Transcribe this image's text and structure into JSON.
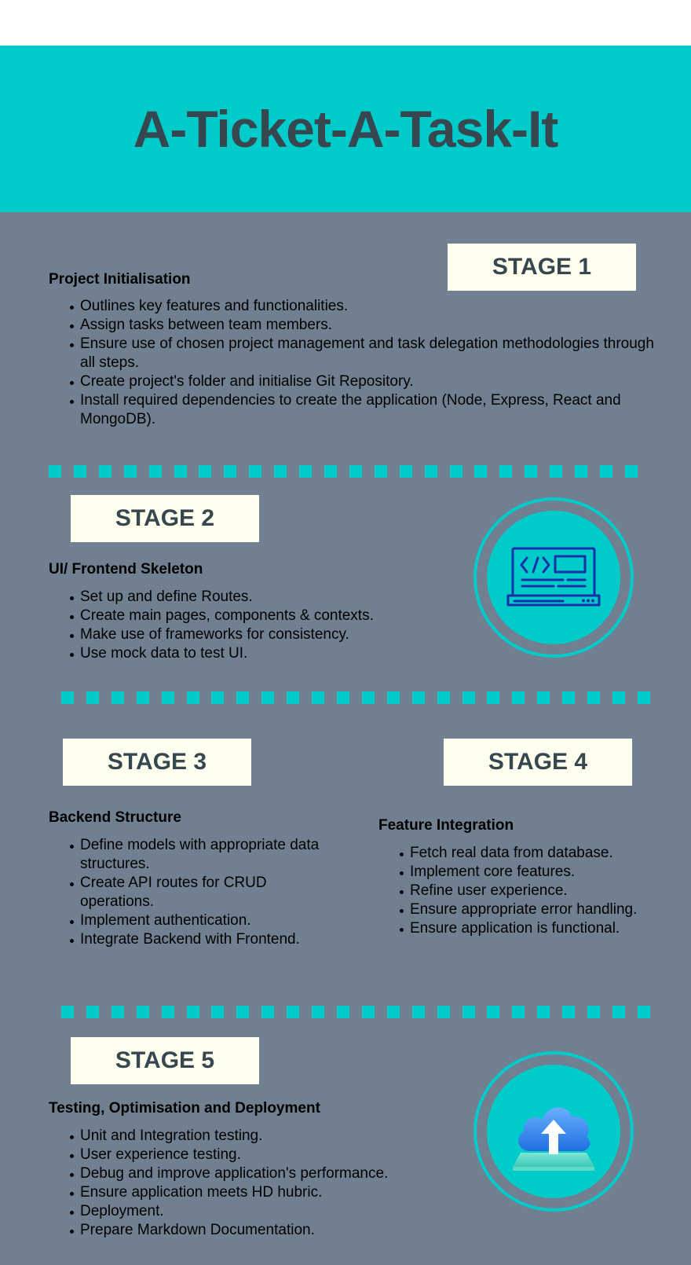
{
  "title": "A-Ticket-A-Task-It",
  "colors": {
    "accent": "#00cbcb",
    "background": "#708090",
    "stage_box": "#fffff0",
    "heading": "#37474f"
  },
  "stage1": {
    "label": "STAGE 1",
    "title": "Project Initialisation",
    "items": [
      "Outlines key features and functionalities.",
      "Assign tasks between team members.",
      "Ensure use of chosen project management and task delegation methodologies through all steps.",
      "Create project's folder and initialise Git Repository.",
      "Install required dependencies to create the application (Node, Express, React and MongoDB)."
    ]
  },
  "stage2": {
    "label": "STAGE 2",
    "title": "UI/ Frontend Skeleton",
    "icon": "laptop-code-icon",
    "items": [
      "Set up and define Routes.",
      "Create main pages, components & contexts.",
      "Make use of frameworks for consistency.",
      "Use mock data to test UI."
    ]
  },
  "stage3": {
    "label": "STAGE 3",
    "title": "Backend Structure",
    "items": [
      "Define models with appropriate data structures.",
      "Create API routes for CRUD operations.",
      "Implement authentication.",
      "Integrate Backend with Frontend."
    ]
  },
  "stage4": {
    "label": "STAGE 4",
    "title": "Feature Integration",
    "items": [
      "Fetch real data from database.",
      "Implement core features.",
      "Refine user experience.",
      "Ensure appropriate error handling.",
      "Ensure application is functional."
    ]
  },
  "stage5": {
    "label": "STAGE 5",
    "title": "Testing, Optimisation and Deployment",
    "icon": "cloud-upload-icon",
    "items": [
      "Unit and Integration testing.",
      "User experience testing.",
      "Debug and improve application's performance.",
      "Ensure application meets HD hubric.",
      "Deployment.",
      "Prepare Markdown Documentation."
    ]
  }
}
